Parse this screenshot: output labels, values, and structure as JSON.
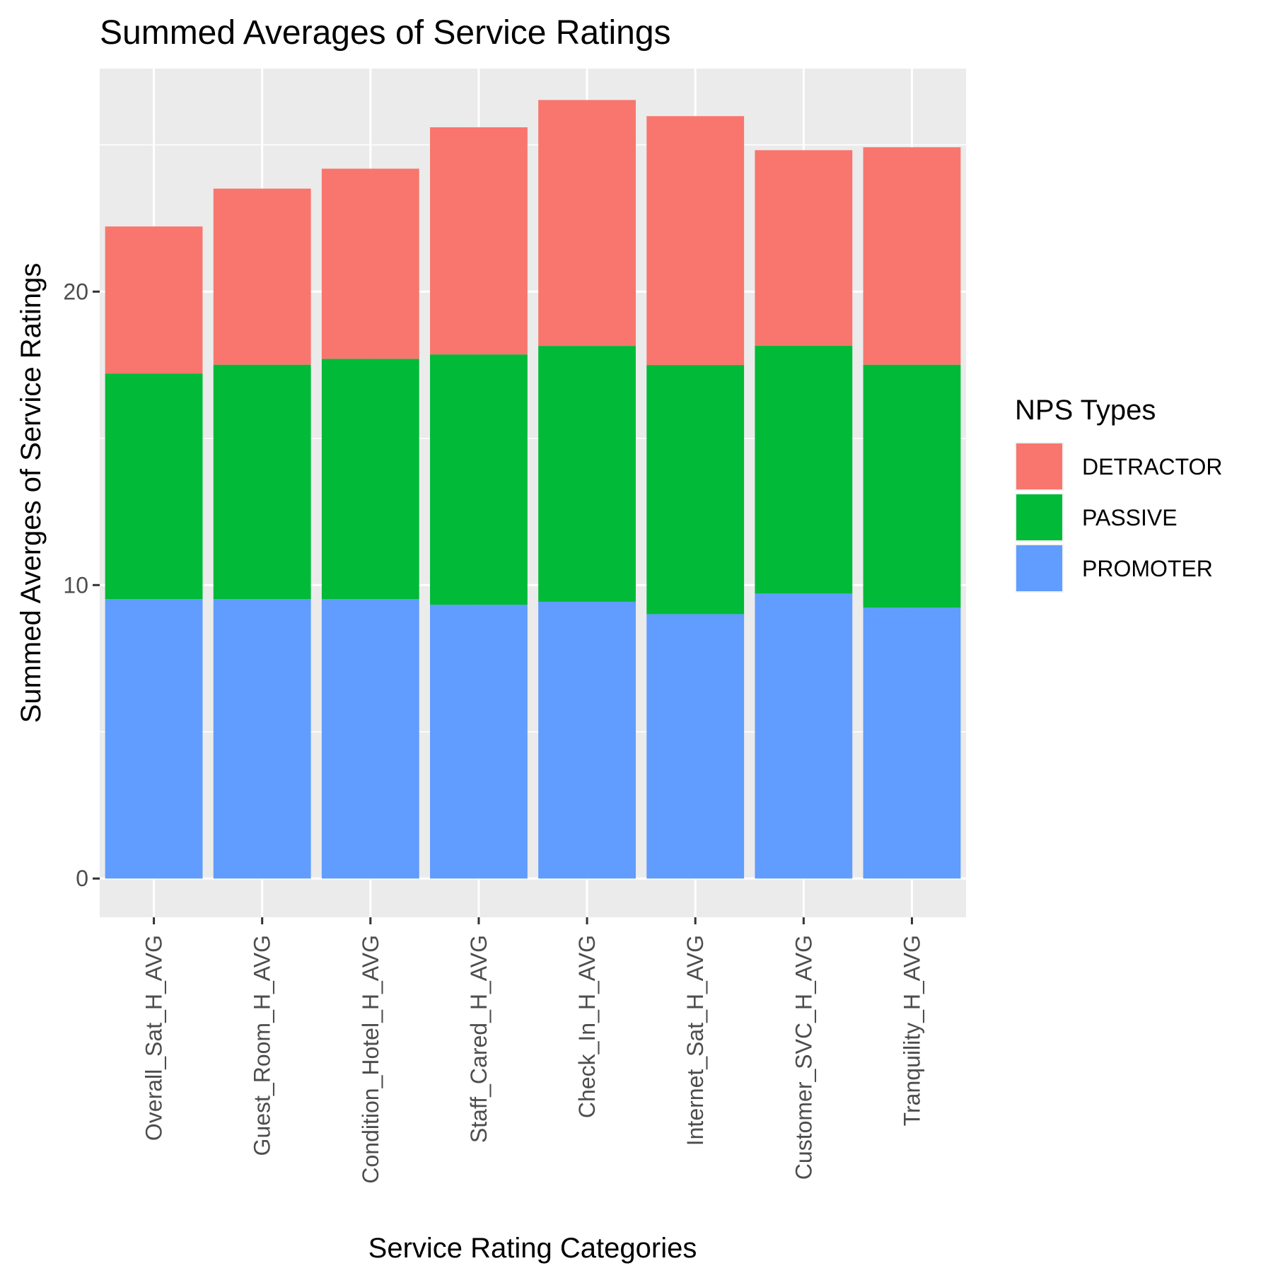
{
  "chart_data": {
    "type": "bar",
    "stacked": true,
    "title": "Summed Averages of Service Ratings",
    "xlabel": "Service Rating Categories",
    "ylabel": "Summed Averges of Service Ratings",
    "categories": [
      "Overall_Sat_H_AVG",
      "Guest_Room_H_AVG",
      "Condition_Hotel_H_AVG",
      "Staff_Cared_H_AVG",
      "Check_In_H_AVG",
      "Internet_Sat_H_AVG",
      "Customer_SVC_H_AVG",
      "Tranquility_H_AVG"
    ],
    "series": [
      {
        "name": "PROMOTER",
        "color": "#619CFF",
        "values": [
          9.52,
          9.52,
          9.52,
          9.33,
          9.43,
          9.01,
          9.71,
          9.23
        ]
      },
      {
        "name": "PASSIVE",
        "color": "#00BA38",
        "values": [
          7.69,
          7.99,
          8.19,
          8.53,
          8.72,
          8.49,
          8.45,
          8.28
        ]
      },
      {
        "name": "DETRACTOR",
        "color": "#F8766D",
        "values": [
          5.01,
          6.0,
          6.48,
          7.74,
          8.38,
          8.48,
          6.66,
          7.41
        ]
      }
    ],
    "legend_title": "NPS Types",
    "legend_order": [
      "DETRACTOR",
      "PASSIVE",
      "PROMOTER"
    ],
    "legend_position": "right",
    "yticks": [
      0,
      10,
      20
    ],
    "ylim": [
      -1.32,
      27.6
    ],
    "grid": true,
    "panel_background": "#EBEBEB"
  }
}
